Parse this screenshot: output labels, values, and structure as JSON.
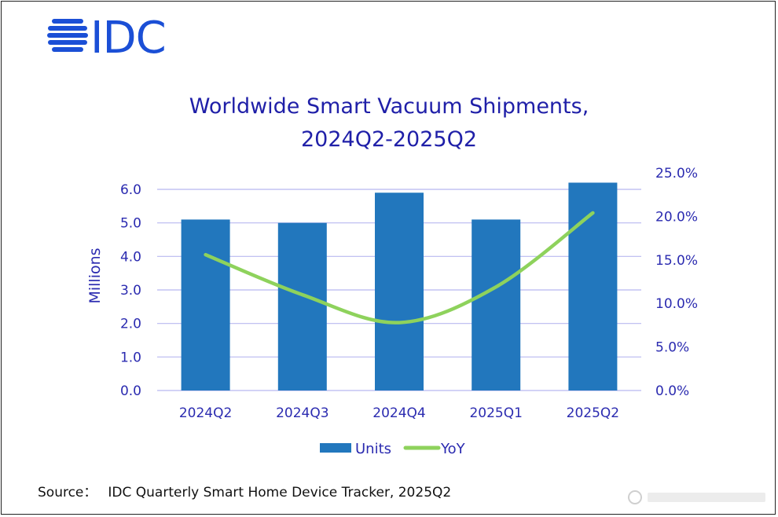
{
  "logo": {
    "text": "IDC"
  },
  "title": {
    "line1": "Worldwide Smart Vacuum Shipments,",
    "line2": "2024Q2-2025Q2"
  },
  "source": {
    "label": "Source：",
    "text": "IDC Quarterly Smart Home Device Tracker, 2025Q2"
  },
  "colors": {
    "bars": "#2277bd",
    "line": "#8ed25c",
    "grid": "#b8b8f0",
    "text": "#2b2bb0",
    "title": "#1f1fa8",
    "logo": "#1b4fd6"
  },
  "chart_data": {
    "type": "bar",
    "title": "Worldwide Smart Vacuum Shipments, 2024Q2-2025Q2",
    "categories": [
      "2024Q2",
      "2024Q3",
      "2024Q4",
      "2025Q1",
      "2025Q2"
    ],
    "series": [
      {
        "name": "Units",
        "type": "bar",
        "axis": "left",
        "values": [
          5.1,
          5.0,
          5.9,
          5.1,
          6.2
        ]
      },
      {
        "name": "YoY",
        "type": "line",
        "axis": "right",
        "values": [
          15.6,
          11.0,
          7.8,
          11.9,
          20.4
        ]
      }
    ],
    "ylabel": "Millions",
    "ylim": [
      0,
      6.0
    ],
    "yticks": [
      "0.0",
      "1.0",
      "2.0",
      "3.0",
      "4.0",
      "5.0",
      "6.0"
    ],
    "y2lim": [
      0,
      25
    ],
    "y2ticks": [
      "0.0%",
      "5.0%",
      "10.0%",
      "15.0%",
      "20.0%",
      "25.0%"
    ],
    "legend": [
      "Units",
      "YoY"
    ],
    "legend_position": "bottom",
    "grid": true
  }
}
